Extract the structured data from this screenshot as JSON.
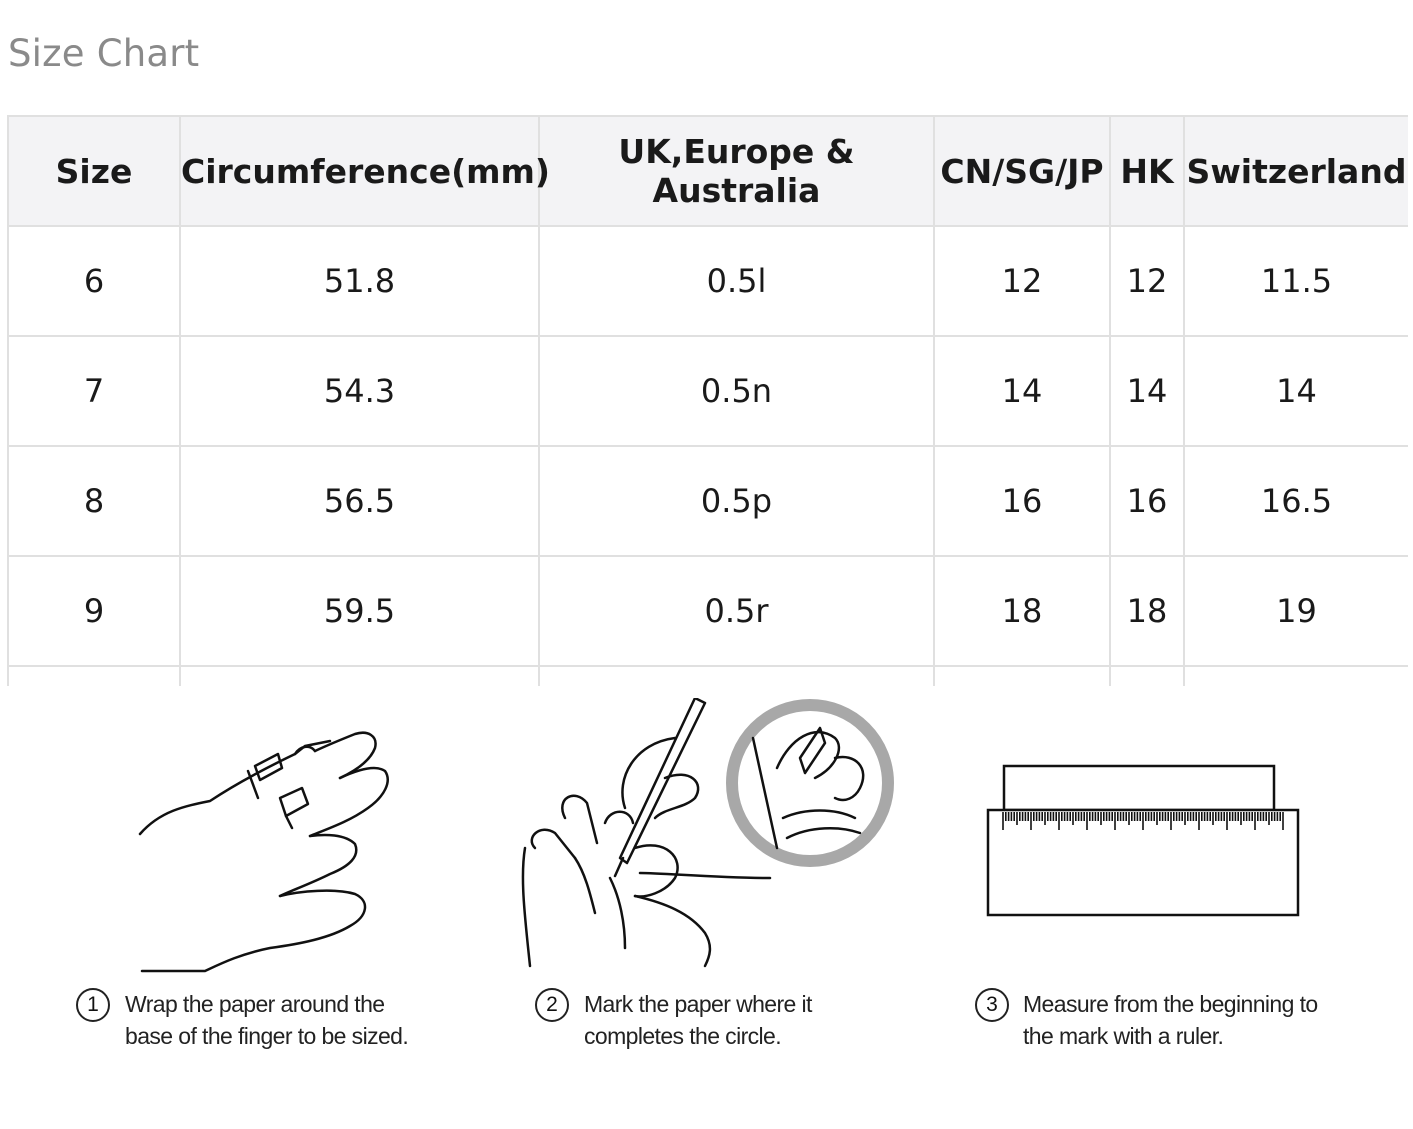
{
  "title": "Size Chart",
  "table": {
    "headers": [
      "Size",
      "Circumference(mm)",
      "UK,Europe & Australia",
      "CN/SG/JP",
      "HK",
      "Switzerland"
    ],
    "rows": [
      [
        "6",
        "51.8",
        "0.5l",
        "12",
        "12",
        "11.5"
      ],
      [
        "7",
        "54.3",
        "0.5n",
        "14",
        "14",
        "14"
      ],
      [
        "8",
        "56.5",
        "0.5p",
        "16",
        "16",
        "16.5"
      ],
      [
        "9",
        "59.5",
        "0.5r",
        "18",
        "18",
        "19"
      ]
    ]
  },
  "steps": [
    {
      "num": "1",
      "line1": "Wrap the paper around the",
      "line2": "base of the finger to be sized."
    },
    {
      "num": "2",
      "line1": "Mark the paper where it",
      "line2": "completes the circle."
    },
    {
      "num": "3",
      "line1": "Measure from the beginning to",
      "line2": "the mark with a ruler."
    }
  ],
  "icons": [
    "hand-wrap-icon",
    "pen-mark-icon",
    "ruler-icon"
  ]
}
